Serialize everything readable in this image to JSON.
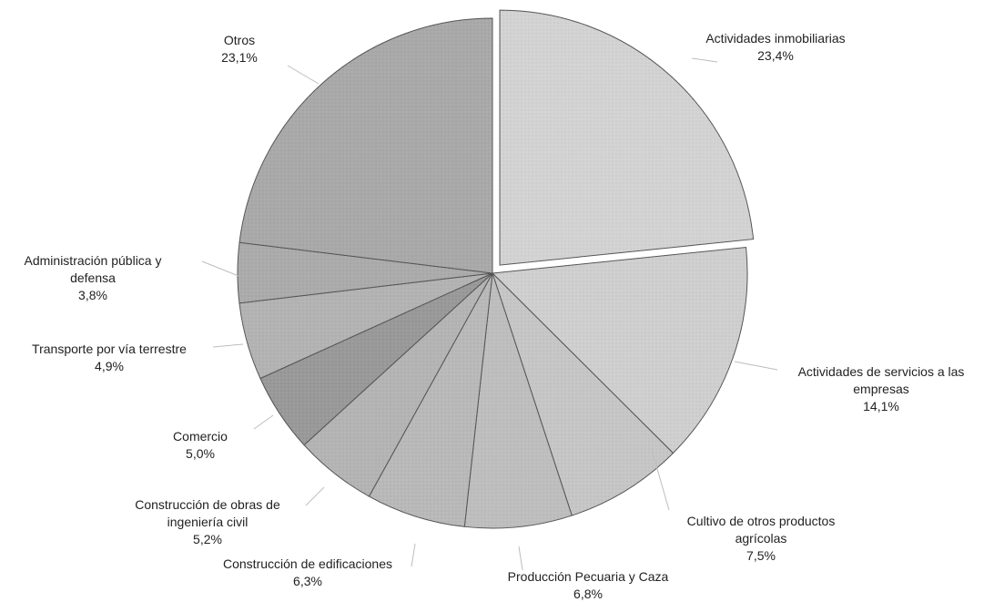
{
  "chart_data": {
    "type": "pie",
    "title": "",
    "slices": [
      {
        "name_lines": [
          "Actividades inmobiliarias"
        ],
        "value": 23.4,
        "value_label": "23,4%",
        "color": "#d3d3d3",
        "exploded": true
      },
      {
        "name_lines": [
          "Actividades de servicios a las",
          "empresas"
        ],
        "value": 14.1,
        "value_label": "14,1%",
        "color": "#cfcfcf",
        "exploded": false
      },
      {
        "name_lines": [
          "Cultivo de otros productos",
          "agrícolas"
        ],
        "value": 7.5,
        "value_label": "7,5%",
        "color": "#c6c6c6",
        "exploded": false
      },
      {
        "name_lines": [
          "Producción Pecuaria y Caza"
        ],
        "value": 6.8,
        "value_label": "6,8%",
        "color": "#bebebe",
        "exploded": false
      },
      {
        "name_lines": [
          "Construcción de edificaciones"
        ],
        "value": 6.3,
        "value_label": "6,3%",
        "color": "#b9b9b9",
        "exploded": false
      },
      {
        "name_lines": [
          "Construcción de obras de",
          "ingeniería civil"
        ],
        "value": 5.2,
        "value_label": "5,2%",
        "color": "#b4b4b4",
        "exploded": false
      },
      {
        "name_lines": [
          "Comercio"
        ],
        "value": 5.0,
        "value_label": "5,0%",
        "color": "#999999",
        "exploded": false
      },
      {
        "name_lines": [
          "Transporte por vía terrestre"
        ],
        "value": 4.9,
        "value_label": "4,9%",
        "color": "#b3b3b3",
        "exploded": false
      },
      {
        "name_lines": [
          "Administración pública y",
          "defensa"
        ],
        "value": 3.8,
        "value_label": "3,8%",
        "color": "#ababab",
        "exploded": false
      },
      {
        "name_lines": [
          "Otros"
        ],
        "value": 23.1,
        "value_label": "23,1%",
        "color": "#a9a9a9",
        "exploded": false
      }
    ]
  }
}
